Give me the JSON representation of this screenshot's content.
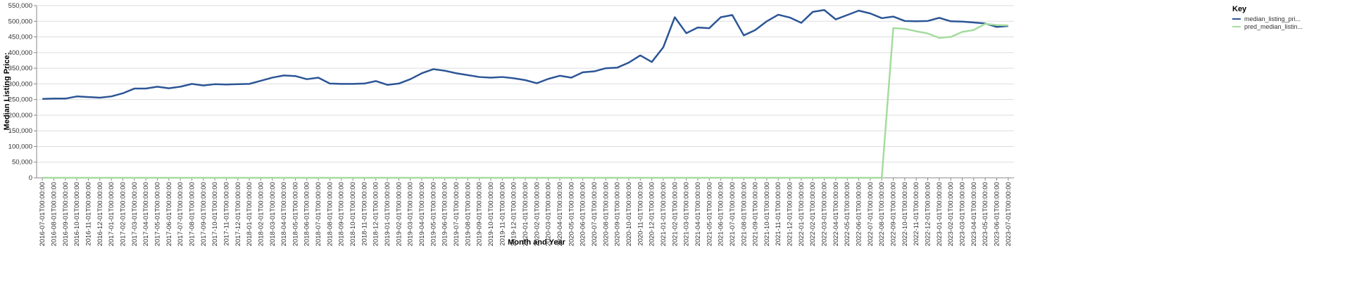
{
  "chart_data": {
    "type": "line",
    "x_label": "Month and Year",
    "y_label": "Median Listing Price:",
    "legend_title": "Key",
    "legend": "right",
    "grid": true,
    "categories": [
      "2016-07-01T00:00:00",
      "2016-08-01T00:00:00",
      "2016-09-01T00:00:00",
      "2016-10-01T00:00:00",
      "2016-11-01T00:00:00",
      "2016-12-01T00:00:00",
      "2017-01-01T00:00:00",
      "2017-02-01T00:00:00",
      "2017-03-01T00:00:00",
      "2017-04-01T00:00:00",
      "2017-05-01T00:00:00",
      "2017-06-01T00:00:00",
      "2017-07-01T00:00:00",
      "2017-08-01T00:00:00",
      "2017-09-01T00:00:00",
      "2017-10-01T00:00:00",
      "2017-11-01T00:00:00",
      "2017-12-01T00:00:00",
      "2018-01-01T00:00:00",
      "2018-02-01T00:00:00",
      "2018-03-01T00:00:00",
      "2018-04-01T00:00:00",
      "2018-05-01T00:00:00",
      "2018-06-01T00:00:00",
      "2018-07-01T00:00:00",
      "2018-08-01T00:00:00",
      "2018-09-01T00:00:00",
      "2018-10-01T00:00:00",
      "2018-11-01T00:00:00",
      "2018-12-01T00:00:00",
      "2019-01-01T00:00:00",
      "2019-02-01T00:00:00",
      "2019-03-01T00:00:00",
      "2019-04-01T00:00:00",
      "2019-05-01T00:00:00",
      "2019-06-01T00:00:00",
      "2019-07-01T00:00:00",
      "2019-08-01T00:00:00",
      "2019-09-01T00:00:00",
      "2019-10-01T00:00:00",
      "2019-11-01T00:00:00",
      "2019-12-01T00:00:00",
      "2020-01-01T00:00:00",
      "2020-02-01T00:00:00",
      "2020-03-01T00:00:00",
      "2020-04-01T00:00:00",
      "2020-05-01T00:00:00",
      "2020-06-01T00:00:00",
      "2020-07-01T00:00:00",
      "2020-08-01T00:00:00",
      "2020-09-01T00:00:00",
      "2020-10-01T00:00:00",
      "2020-11-01T00:00:00",
      "2020-12-01T00:00:00",
      "2021-01-01T00:00:00",
      "2021-02-01T00:00:00",
      "2021-03-01T00:00:00",
      "2021-04-01T00:00:00",
      "2021-05-01T00:00:00",
      "2021-06-01T00:00:00",
      "2021-07-01T00:00:00",
      "2021-08-01T00:00:00",
      "2021-09-01T00:00:00",
      "2021-10-01T00:00:00",
      "2021-11-01T00:00:00",
      "2021-12-01T00:00:00",
      "2022-01-01T00:00:00",
      "2022-02-01T00:00:00",
      "2022-03-01T00:00:00",
      "2022-04-01T00:00:00",
      "2022-05-01T00:00:00",
      "2022-06-01T00:00:00",
      "2022-07-01T00:00:00",
      "2022-08-01T00:00:00",
      "2022-09-01T00:00:00",
      "2022-10-01T00:00:00",
      "2022-11-01T00:00:00",
      "2022-12-01T00:00:00",
      "2023-01-01T00:00:00",
      "2023-02-01T00:00:00",
      "2023-03-01T00:00:00",
      "2023-04-01T00:00:00",
      "2023-05-01T00:00:00",
      "2023-06-01T00:00:00",
      "2023-07-01T00:00:00"
    ],
    "series": [
      {
        "name": "median_listing_pri...",
        "color": "#2c5596",
        "values": [
          252000,
          253000,
          253000,
          260000,
          258000,
          256000,
          260000,
          270000,
          285000,
          285000,
          291000,
          286000,
          291000,
          300000,
          295000,
          299000,
          298000,
          299000,
          300000,
          310000,
          320000,
          327000,
          325000,
          315000,
          320000,
          301000,
          300000,
          300000,
          301000,
          309000,
          297000,
          301000,
          315000,
          334000,
          347000,
          342000,
          334000,
          328000,
          322000,
          320000,
          322000,
          318000,
          312000,
          302000,
          316000,
          326000,
          320000,
          337000,
          340000,
          350000,
          352000,
          368000,
          391000,
          370000,
          417000,
          513000,
          462000,
          480000,
          478000,
          513000,
          520000,
          455000,
          472000,
          500000,
          521000,
          512000,
          495000,
          530000,
          536000,
          506000,
          520000,
          534000,
          525000,
          510000,
          515000,
          501000,
          500000,
          501000,
          511000,
          500000,
          499000,
          496000,
          493000,
          482000,
          485000
        ]
      },
      {
        "name": "pred_median_listin...",
        "color": "#a5dc9f",
        "values": [
          0,
          0,
          0,
          0,
          0,
          0,
          0,
          0,
          0,
          0,
          0,
          0,
          0,
          0,
          0,
          0,
          0,
          0,
          0,
          0,
          0,
          0,
          0,
          0,
          0,
          0,
          0,
          0,
          0,
          0,
          0,
          0,
          0,
          0,
          0,
          0,
          0,
          0,
          0,
          0,
          0,
          0,
          0,
          0,
          0,
          0,
          0,
          0,
          0,
          0,
          0,
          0,
          0,
          0,
          0,
          0,
          0,
          0,
          0,
          0,
          0,
          0,
          0,
          0,
          0,
          0,
          0,
          0,
          0,
          0,
          0,
          0,
          0,
          0,
          478000,
          476000,
          468000,
          461000,
          447000,
          450000,
          466000,
          472000,
          492000,
          488000,
          487000
        ]
      }
    ],
    "ylim": [
      0,
      550000
    ],
    "yticks": [
      0,
      {
        "value": 50000,
        "label": "50,000"
      },
      {
        "value": 100000,
        "label": "100,000"
      },
      {
        "value": 150000,
        "label": "150,000"
      },
      {
        "value": 200000,
        "label": "200,000"
      },
      {
        "value": 250000,
        "label": "250,000"
      },
      {
        "value": 300000,
        "label": "300,000"
      },
      {
        "value": 350000,
        "label": "350,000"
      },
      {
        "value": 400000,
        "label": "400,000"
      },
      {
        "value": 450000,
        "label": "450,000"
      },
      {
        "value": 500000,
        "label": "500,000"
      },
      {
        "value": 550000,
        "label": "550,000"
      }
    ]
  }
}
